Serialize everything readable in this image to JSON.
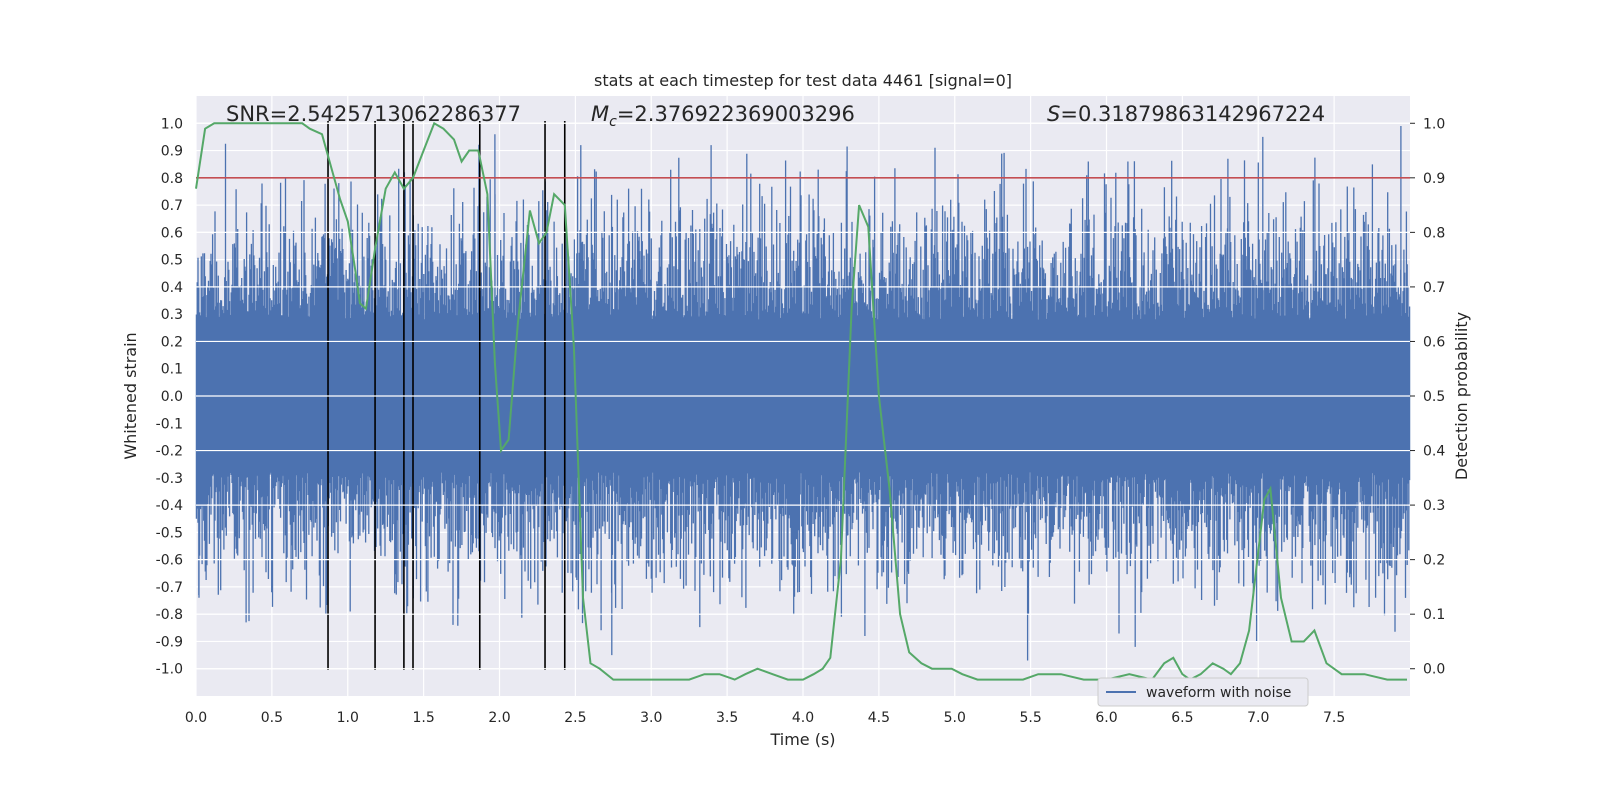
{
  "chart_data": {
    "type": "line",
    "title": "stats at each timestep for test data 4461 [signal=0]",
    "xlabel": "Time (s)",
    "ylabel": "Whitened strain",
    "ylabel_right": "Detection probability",
    "xlim": [
      0.0,
      8.0
    ],
    "ylim": [
      -1.1,
      1.1
    ],
    "ylim_right": [
      -0.05,
      1.05
    ],
    "grid": true,
    "x_ticks": [
      "0.0",
      "0.5",
      "1.0",
      "1.5",
      "2.0",
      "2.5",
      "3.0",
      "3.5",
      "4.0",
      "4.5",
      "5.0",
      "5.5",
      "6.0",
      "6.5",
      "7.0",
      "7.5"
    ],
    "y_ticks": [
      "1.0",
      "0.9",
      "0.8",
      "0.7",
      "0.6",
      "0.5",
      "0.4",
      "0.3",
      "0.2",
      "0.1",
      "0.0",
      "-0.1",
      "-0.2",
      "-0.3",
      "-0.4",
      "-0.5",
      "-0.6",
      "-0.7",
      "-0.8",
      "-0.9",
      "-1.0"
    ],
    "y_ticks_right": [
      "1.0",
      "0.9",
      "0.8",
      "0.7",
      "0.6",
      "0.5",
      "0.4",
      "0.3",
      "0.2",
      "0.1",
      "0.0"
    ],
    "annotations": {
      "snr": "SNR=2.5425713062286377",
      "mc_symbol": "M",
      "mc_sub": "c",
      "mc_value": "=2.376922369003296",
      "s_symbol": "S",
      "s_value": "=0.31879863142967224"
    },
    "legend": {
      "position": "lower-right",
      "entries": [
        "waveform with noise"
      ]
    },
    "threshold": {
      "y_right": 0.9,
      "color": "#c44e52"
    },
    "vlines_x": [
      0.87,
      1.18,
      1.37,
      1.43,
      1.87,
      2.3,
      2.43
    ],
    "series": [
      {
        "name": "waveform with noise",
        "axis": "left",
        "color": "#4c72b0",
        "style": "dense noise, envelope approx. ±0.6 with spikes to ±1.0",
        "peaks": [
          {
            "x": 0.02,
            "y": -0.74
          },
          {
            "x": 0.33,
            "y": -0.83
          },
          {
            "x": 0.59,
            "y": 0.8
          },
          {
            "x": 1.97,
            "y": 0.96
          },
          {
            "x": 2.43,
            "y": 0.86
          },
          {
            "x": 2.74,
            "y": -0.95
          },
          {
            "x": 4.1,
            "y": 0.83
          },
          {
            "x": 4.87,
            "y": 0.91
          },
          {
            "x": 5.48,
            "y": -0.97
          },
          {
            "x": 5.88,
            "y": 0.86
          },
          {
            "x": 6.8,
            "y": 0.87
          },
          {
            "x": 7.03,
            "y": 0.95
          },
          {
            "x": 7.94,
            "y": 0.99
          }
        ]
      },
      {
        "name": "",
        "axis": "right",
        "color": "#55a868",
        "x": [
          0.0,
          0.06,
          0.12,
          0.2,
          0.3,
          0.4,
          0.5,
          0.6,
          0.7,
          0.75,
          0.83,
          0.9,
          0.95,
          1.0,
          1.05,
          1.08,
          1.12,
          1.18,
          1.25,
          1.31,
          1.37,
          1.43,
          1.5,
          1.57,
          1.63,
          1.7,
          1.75,
          1.8,
          1.86,
          1.92,
          1.97,
          2.01,
          2.06,
          2.12,
          2.2,
          2.26,
          2.31,
          2.36,
          2.43,
          2.49,
          2.55,
          2.6,
          2.66,
          2.75,
          2.85,
          3.0,
          3.15,
          3.25,
          3.35,
          3.45,
          3.55,
          3.62,
          3.7,
          3.8,
          3.9,
          4.0,
          4.07,
          4.13,
          4.18,
          4.25,
          4.32,
          4.37,
          4.43,
          4.5,
          4.57,
          4.64,
          4.7,
          4.78,
          4.85,
          4.93,
          4.98,
          5.05,
          5.15,
          5.25,
          5.35,
          5.45,
          5.55,
          5.7,
          5.85,
          6.0,
          6.15,
          6.3,
          6.38,
          6.44,
          6.5,
          6.55,
          6.62,
          6.7,
          6.77,
          6.82,
          6.88,
          6.94,
          6.99,
          7.04,
          7.08,
          7.15,
          7.22,
          7.3,
          7.37,
          7.45,
          7.55,
          7.7,
          7.85,
          7.98
        ],
        "values": [
          0.88,
          0.99,
          1.0,
          1.0,
          1.0,
          1.0,
          1.0,
          1.0,
          1.0,
          0.99,
          0.98,
          0.91,
          0.86,
          0.82,
          0.73,
          0.67,
          0.66,
          0.77,
          0.88,
          0.91,
          0.88,
          0.9,
          0.95,
          1.0,
          0.99,
          0.97,
          0.93,
          0.95,
          0.95,
          0.87,
          0.56,
          0.4,
          0.42,
          0.63,
          0.84,
          0.78,
          0.8,
          0.87,
          0.85,
          0.59,
          0.13,
          0.01,
          0.0,
          -0.02,
          -0.02,
          -0.02,
          -0.02,
          -0.02,
          -0.01,
          -0.01,
          -0.02,
          -0.01,
          0.0,
          -0.01,
          -0.02,
          -0.02,
          -0.01,
          0.0,
          0.02,
          0.2,
          0.66,
          0.85,
          0.81,
          0.5,
          0.33,
          0.1,
          0.03,
          0.01,
          0.0,
          0.0,
          0.0,
          -0.01,
          -0.02,
          -0.02,
          -0.02,
          -0.02,
          -0.01,
          -0.01,
          -0.02,
          -0.02,
          -0.01,
          -0.02,
          0.01,
          0.02,
          -0.01,
          -0.02,
          -0.01,
          0.01,
          0.0,
          -0.01,
          0.01,
          0.07,
          0.19,
          0.31,
          0.33,
          0.13,
          0.05,
          0.05,
          0.07,
          0.01,
          -0.01,
          -0.01,
          -0.02,
          -0.02
        ]
      }
    ]
  }
}
